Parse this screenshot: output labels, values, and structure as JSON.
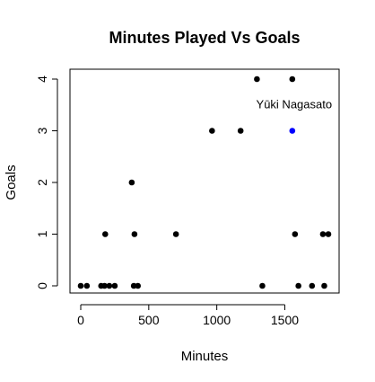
{
  "chart_data": {
    "type": "scatter",
    "title": "Minutes Played Vs Goals",
    "xlabel": "Minutes",
    "ylabel": "Goals",
    "xlim": [
      0,
      1820
    ],
    "ylim": [
      0,
      4
    ],
    "x_ticks": [
      0,
      500,
      1000,
      1500
    ],
    "y_ticks": [
      0,
      1,
      2,
      3,
      4
    ],
    "grid": false,
    "point_color": "#000000",
    "highlight_color": "#0000ff",
    "points": [
      {
        "x": 0,
        "y": 0
      },
      {
        "x": 45,
        "y": 0
      },
      {
        "x": 150,
        "y": 0
      },
      {
        "x": 175,
        "y": 0
      },
      {
        "x": 210,
        "y": 0
      },
      {
        "x": 250,
        "y": 0
      },
      {
        "x": 390,
        "y": 0
      },
      {
        "x": 420,
        "y": 0
      },
      {
        "x": 1335,
        "y": 0
      },
      {
        "x": 1600,
        "y": 0
      },
      {
        "x": 1700,
        "y": 0
      },
      {
        "x": 1790,
        "y": 0
      },
      {
        "x": 180,
        "y": 1
      },
      {
        "x": 395,
        "y": 1
      },
      {
        "x": 700,
        "y": 1
      },
      {
        "x": 1575,
        "y": 1
      },
      {
        "x": 1780,
        "y": 1
      },
      {
        "x": 1820,
        "y": 1
      },
      {
        "x": 375,
        "y": 2
      },
      {
        "x": 965,
        "y": 3
      },
      {
        "x": 1175,
        "y": 3
      },
      {
        "x": 1555,
        "y": 3,
        "highlight": true
      },
      {
        "x": 1295,
        "y": 4
      },
      {
        "x": 1555,
        "y": 4
      }
    ],
    "annotation": {
      "text": "Yūki Nagasato",
      "x": 1555,
      "y": 3
    }
  }
}
